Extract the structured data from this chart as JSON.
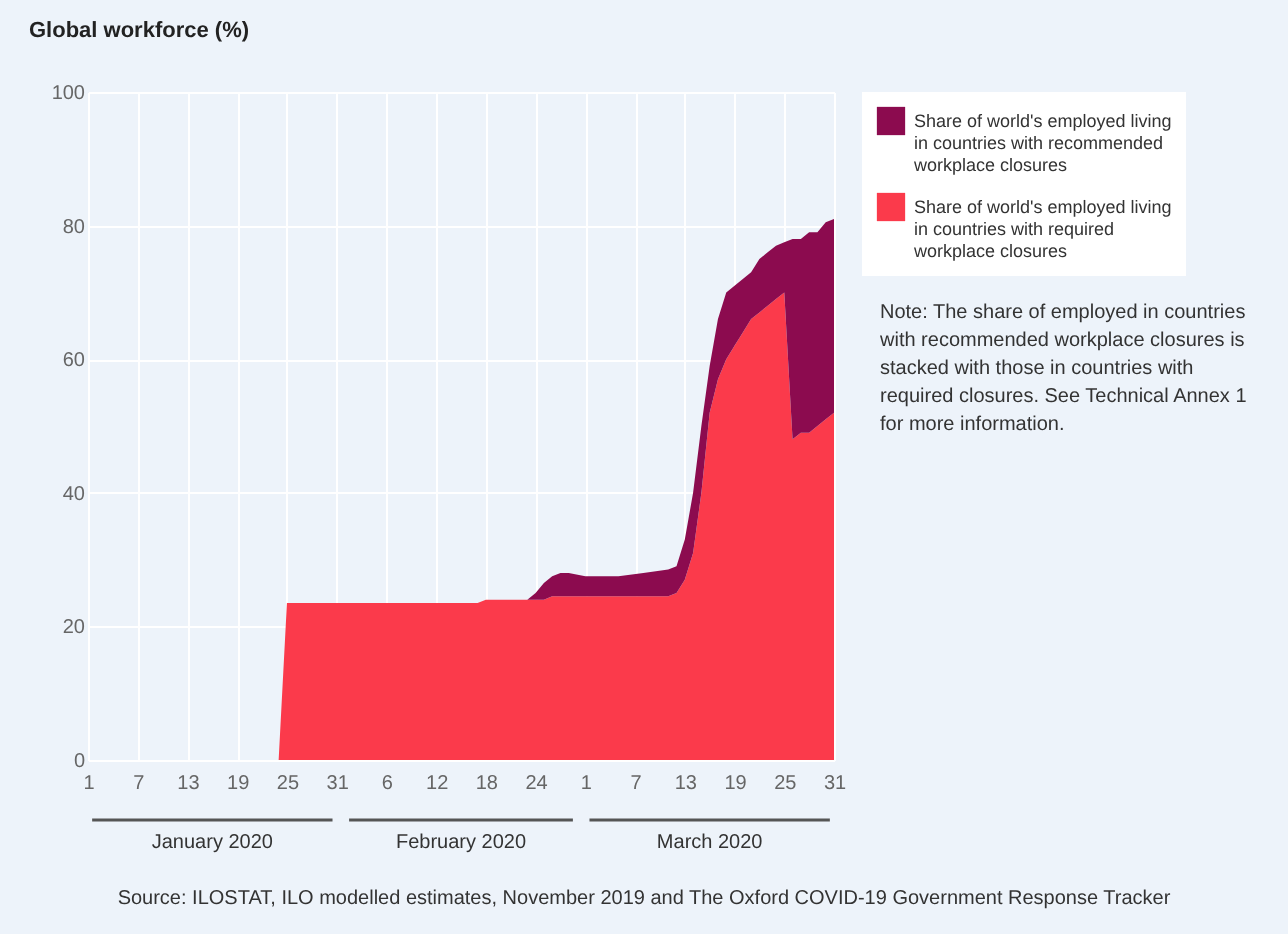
{
  "chart_data": {
    "type": "area",
    "ylabel": "Global workforce (%)",
    "annotations": [
      "January 2020",
      "February 2020",
      "March 2020",
      "Note: The share of employed in countries with recommended workplace closures is stacked with those in countries with required closures. See Technical Annex 1 for more information.",
      "Source: ILOSTAT, ILO modelled estimates, November 2019 and The Oxford COVID-19 Government Response Tracker"
    ],
    "x": [
      "2020-01-01",
      "2020-01-24",
      "2020-01-25",
      "2020-02-17",
      "2020-02-18",
      "2020-02-23",
      "2020-02-24",
      "2020-02-25",
      "2020-02-26",
      "2020-02-27",
      "2020-02-28",
      "2020-03-01",
      "2020-03-05",
      "2020-03-08",
      "2020-03-11",
      "2020-03-12",
      "2020-03-13",
      "2020-03-14",
      "2020-03-15",
      "2020-03-16",
      "2020-03-17",
      "2020-03-18",
      "2020-03-19",
      "2020-03-20",
      "2020-03-21",
      "2020-03-22",
      "2020-03-23",
      "2020-03-24",
      "2020-03-25",
      "2020-03-26",
      "2020-03-27",
      "2020-03-28",
      "2020-03-29",
      "2020-03-30",
      "2020-03-31"
    ],
    "stacked": true,
    "series": [
      {
        "name": "Share of world's employed living in countries with required workplace closures",
        "color": "#fb3a4b",
        "values": [
          0,
          0,
          23.5,
          23.5,
          24,
          24,
          24,
          24,
          24.5,
          24.5,
          24.5,
          24.5,
          24.5,
          24.5,
          24.5,
          25,
          27,
          31,
          40,
          52,
          57,
          60,
          62,
          64,
          66,
          67,
          68,
          69,
          70,
          48,
          49,
          49,
          50,
          51,
          52
        ]
      },
      {
        "name": "Share of world's employed living in countries with recommended workplace closures",
        "color": "#8c0b4f",
        "values": [
          0,
          0,
          0,
          0,
          0,
          0,
          1,
          2.5,
          3,
          3.5,
          3.5,
          3,
          3,
          3.5,
          4,
          4,
          6,
          9,
          10,
          7,
          9,
          10,
          9,
          8,
          7,
          8,
          8,
          8,
          7.5,
          30,
          29,
          30,
          29,
          29.5,
          29
        ]
      }
    ],
    "xlim": [
      "2020-01-01",
      "2020-03-31"
    ],
    "xticks": [
      {
        "value": "2020-01-01",
        "label": "1"
      },
      {
        "value": "2020-01-07",
        "label": "7"
      },
      {
        "value": "2020-01-13",
        "label": "13"
      },
      {
        "value": "2020-01-19",
        "label": "19"
      },
      {
        "value": "2020-01-25",
        "label": "25"
      },
      {
        "value": "2020-01-31",
        "label": "31"
      },
      {
        "value": "2020-02-06",
        "label": "6"
      },
      {
        "value": "2020-02-12",
        "label": "12"
      },
      {
        "value": "2020-02-18",
        "label": "18"
      },
      {
        "value": "2020-02-24",
        "label": "24"
      },
      {
        "value": "2020-03-01",
        "label": "1"
      },
      {
        "value": "2020-03-07",
        "label": "7"
      },
      {
        "value": "2020-03-13",
        "label": "13"
      },
      {
        "value": "2020-03-19",
        "label": "19"
      },
      {
        "value": "2020-03-25",
        "label": "25"
      },
      {
        "value": "2020-03-31",
        "label": "31"
      }
    ],
    "ylim": [
      0,
      100
    ],
    "yticks": [
      0,
      20,
      40,
      60,
      80,
      100
    ],
    "grid": true,
    "legend": "top right"
  }
}
